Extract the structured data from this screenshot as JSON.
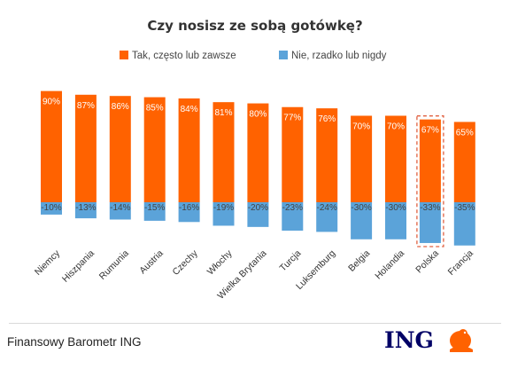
{
  "chart_data": {
    "type": "bar",
    "title": "Czy nosisz ze sobą gotówkę?",
    "categories": [
      "Niemcy",
      "Hiszpania",
      "Rumunia",
      "Austria",
      "Czechy",
      "Włochy",
      "Wielka Brytania",
      "Turcja",
      "Luksemburg",
      "Belgia",
      "Holandia",
      "Polska",
      "Francja"
    ],
    "series": [
      {
        "name": "Tak, często lub zawsze",
        "color": "#FF6200",
        "values": [
          90,
          87,
          86,
          85,
          84,
          81,
          80,
          77,
          76,
          70,
          70,
          67,
          65
        ],
        "labels": [
          "90%",
          "87%",
          "86%",
          "85%",
          "84%",
          "81%",
          "80%",
          "77%",
          "76%",
          "70%",
          "70%",
          "67%",
          "65%"
        ]
      },
      {
        "name": "Nie, rzadko lub nigdy",
        "color": "#5BA3D9",
        "values": [
          -10,
          -13,
          -14,
          -15,
          -16,
          -19,
          -20,
          -23,
          -24,
          -30,
          -30,
          -33,
          -35
        ],
        "labels": [
          "-10%",
          "-13%",
          "-14%",
          "-15%",
          "-16%",
          "-19%",
          "-20%",
          "-23%",
          "-24%",
          "-30%",
          "-30%",
          "-33%",
          "-35%"
        ]
      }
    ],
    "highlighted_category": "Polska",
    "legend_position": "top",
    "grid": false
  },
  "footer": {
    "source": "Finansowy Barometr ING",
    "logo_text": "ING"
  }
}
